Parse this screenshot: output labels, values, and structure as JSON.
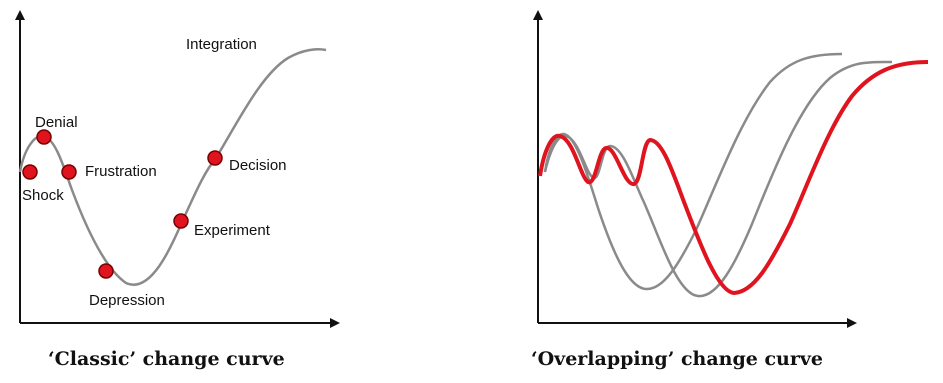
{
  "colors": {
    "axis": "#111111",
    "curve_gray": "#8a8a8a",
    "curve_red": "#e0141e",
    "marker_fill": "#e0141e",
    "marker_stroke": "#7a0000"
  },
  "left_panel": {
    "caption": "‘Classic’ change curve",
    "stages": {
      "integration": "Integration",
      "denial": "Denial",
      "frustration": "Frustration",
      "decision": "Decision",
      "shock": "Shock",
      "experiment": "Experiment",
      "depression": "Depression"
    }
  },
  "right_panel": {
    "caption": "‘Overlapping’ change curve"
  }
}
